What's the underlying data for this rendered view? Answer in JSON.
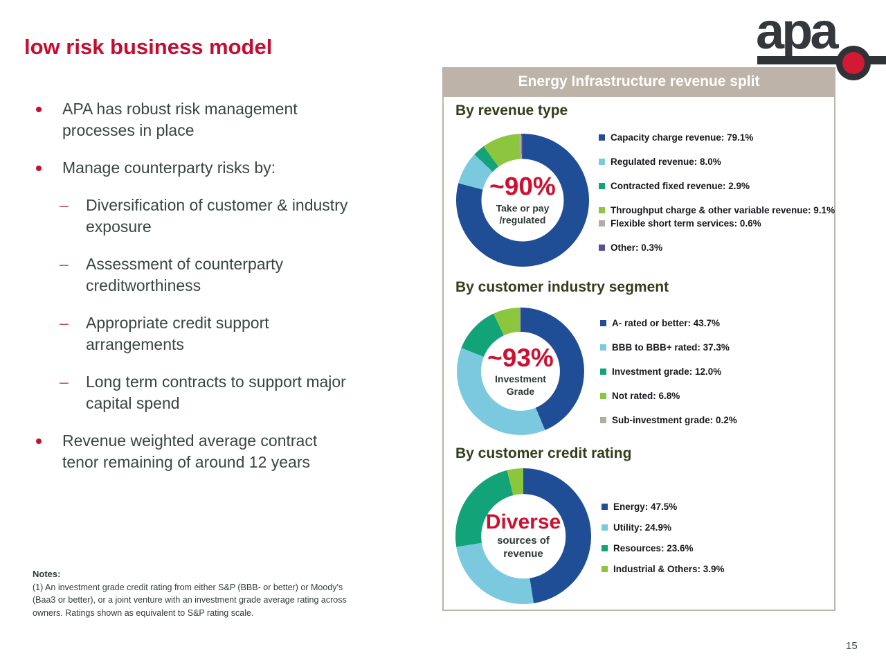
{
  "slide": {
    "title": "low risk business model",
    "page_number": "15"
  },
  "logo": {
    "text": "apa"
  },
  "bullets": [
    {
      "level": 1,
      "lines": [
        "APA has robust risk management",
        "processes in place"
      ]
    },
    {
      "level": 1,
      "lines": [
        "Manage counterparty risks by:"
      ]
    },
    {
      "level": 2,
      "lines": [
        "Diversification of customer & industry",
        "exposure"
      ]
    },
    {
      "level": 2,
      "lines": [
        "Assessment of counterparty",
        "creditworthiness"
      ]
    },
    {
      "level": 2,
      "lines": [
        "Appropriate credit support",
        "arrangements"
      ]
    },
    {
      "level": 2,
      "lines": [
        "Long term contracts to support major",
        "capital spend"
      ]
    },
    {
      "level": 1,
      "lines": [
        "Revenue weighted average contract",
        "tenor remaining of around 12 years"
      ]
    }
  ],
  "panel": {
    "header": "Energy Infrastructure revenue split"
  },
  "chart_data": [
    {
      "type": "pie",
      "subtype": "donut",
      "title": "By revenue type",
      "center": {
        "headline": "~90%",
        "sub": [
          "Take or pay",
          "/regulated"
        ]
      },
      "legend_position": "right",
      "segments": [
        {
          "label": "Capacity charge revenue: 79.1%",
          "value": 79.1,
          "color": "#1F4E96"
        },
        {
          "label": "Regulated revenue: 8.0%",
          "value": 8.0,
          "color": "#7AC9DF"
        },
        {
          "label": "Contracted fixed revenue: 2.9%",
          "value": 2.9,
          "color": "#12A378"
        },
        {
          "label": "Throughput charge & other variable revenue: 9.1%",
          "value": 9.1,
          "color": "#8CC63F"
        },
        {
          "label": "Flexible short term services: 0.6%",
          "value": 0.6,
          "color": "#B3ACA3"
        },
        {
          "label": "Other: 0.3%",
          "value": 0.3,
          "color": "#5C4E93"
        }
      ]
    },
    {
      "type": "pie",
      "subtype": "donut",
      "title": "By customer industry segment",
      "center": {
        "headline": "~93%",
        "sub": [
          "Investment",
          "Grade"
        ]
      },
      "legend_position": "right",
      "segments": [
        {
          "label": "A- rated or better: 43.7%",
          "value": 43.7,
          "color": "#1F4E96"
        },
        {
          "label": "BBB to BBB+ rated: 37.3%",
          "value": 37.3,
          "color": "#7AC9DF"
        },
        {
          "label": "Investment grade: 12.0%",
          "value": 12.0,
          "color": "#12A378"
        },
        {
          "label": "Not rated: 6.8%",
          "value": 6.8,
          "color": "#8CC63F"
        },
        {
          "label": "Sub-investment grade: 0.2%",
          "value": 0.2,
          "color": "#B3ACA3"
        }
      ]
    },
    {
      "type": "pie",
      "subtype": "donut",
      "title": "By customer credit rating",
      "center": {
        "headline": "Diverse",
        "sub": [
          "sources of",
          "revenue"
        ]
      },
      "legend_position": "right",
      "segments": [
        {
          "label": "Energy: 47.5%",
          "value": 47.5,
          "color": "#1F4E96"
        },
        {
          "label": "Utility: 24.9%",
          "value": 24.9,
          "color": "#7AC9DF"
        },
        {
          "label": "Resources: 23.6%",
          "value": 23.6,
          "color": "#12A378"
        },
        {
          "label": "Industrial & Others: 3.9%",
          "value": 3.9,
          "color": "#8CC63F"
        }
      ]
    }
  ],
  "notes": {
    "label": "Notes:",
    "lines": [
      "(1) An investment grade credit rating from either S&P (BBB- or better) or Moody's",
      "(Baa3 or better), or a joint venture with an investment grade average rating across",
      "owners. Ratings shown as equivalent to S&P rating scale."
    ]
  },
  "colors": {
    "crimson": "#C8102E",
    "taupe_band": "#BDB3A9",
    "dark_blue": "#1F4E96",
    "light_blue": "#7AC9DF",
    "teal": "#12A378",
    "lime": "#8CC63F",
    "gray": "#B3ACA3",
    "purple": "#5C4E93"
  }
}
